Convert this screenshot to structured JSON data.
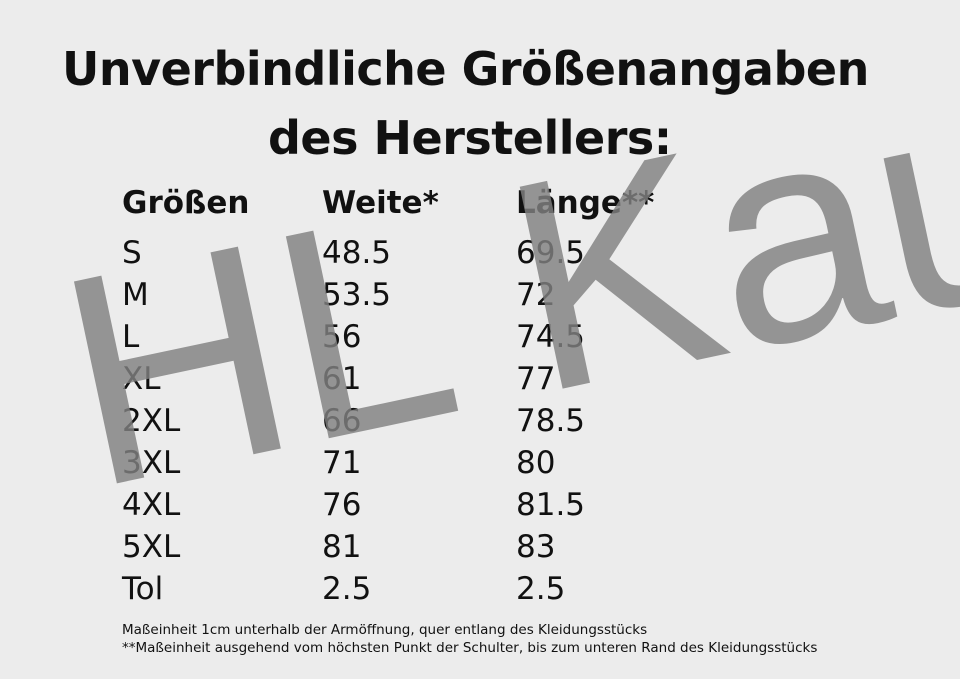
{
  "title": {
    "line1": "Unverbindliche Größenangaben",
    "line2": "des Herstellers:"
  },
  "table": {
    "headers": [
      "Größen",
      "Weite*",
      "Länge**"
    ],
    "rows": [
      [
        "S",
        "48.5",
        "69.5"
      ],
      [
        "M",
        "53.5",
        "72"
      ],
      [
        "L",
        "56",
        "74.5"
      ],
      [
        "XL",
        "61",
        "77"
      ],
      [
        "2XL",
        "66",
        "78.5"
      ],
      [
        "3XL",
        "71",
        "80"
      ],
      [
        "4XL",
        "76",
        "81.5"
      ],
      [
        "5XL",
        "81",
        "83"
      ],
      [
        "Tol",
        "2.5",
        "2.5"
      ]
    ]
  },
  "watermark": "HL Kauf",
  "footnotes": {
    "weite": "Maßeinheit 1cm unterhalb der Armöffnung, quer entlang des Kleidungsstücks",
    "laenge": "**Maßeinheit ausgehend vom höchsten Punkt der Schulter, bis zum unteren Rand des Kleidungsstücks"
  },
  "colors": {
    "background": "#ececec",
    "text": "#111111",
    "watermark": "#808080"
  }
}
